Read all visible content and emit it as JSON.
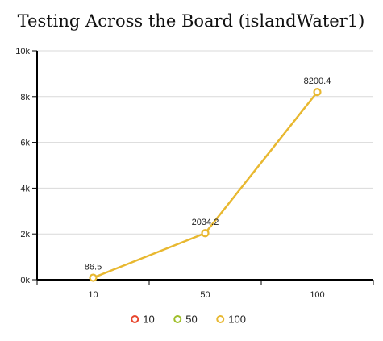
{
  "chart_data": {
    "type": "line",
    "title": "Testing Across the Board (islandWater1)",
    "categories": [
      "10",
      "50",
      "100"
    ],
    "y_ticks": [
      "0k",
      "2k",
      "4k",
      "6k",
      "8k",
      "10k"
    ],
    "ylim": [
      0,
      10000
    ],
    "grid": true,
    "legend_position": "bottom-center",
    "series": [
      {
        "name": "100",
        "values": [
          86.5,
          2034.2,
          8200.4
        ],
        "data_labels": [
          "86.5",
          "2034.2",
          "8200.4"
        ],
        "color": "#e8b830"
      }
    ],
    "legend": [
      {
        "label": "10",
        "color": "#e8452c"
      },
      {
        "label": "50",
        "color": "#9fbf2a"
      },
      {
        "label": "100",
        "color": "#e8b830"
      }
    ]
  }
}
